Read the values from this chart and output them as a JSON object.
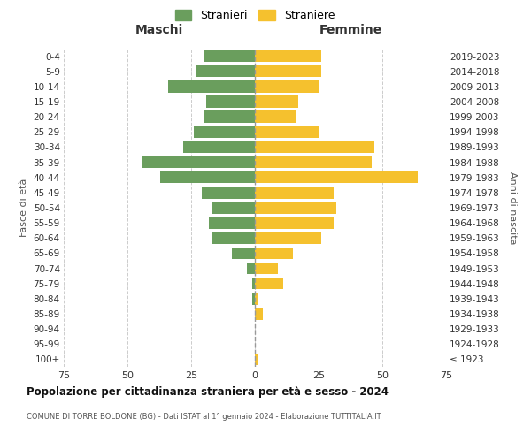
{
  "age_groups": [
    "100+",
    "95-99",
    "90-94",
    "85-89",
    "80-84",
    "75-79",
    "70-74",
    "65-69",
    "60-64",
    "55-59",
    "50-54",
    "45-49",
    "40-44",
    "35-39",
    "30-34",
    "25-29",
    "20-24",
    "15-19",
    "10-14",
    "5-9",
    "0-4"
  ],
  "birth_years": [
    "≤ 1923",
    "1924-1928",
    "1929-1933",
    "1934-1938",
    "1939-1943",
    "1944-1948",
    "1949-1953",
    "1954-1958",
    "1959-1963",
    "1964-1968",
    "1969-1973",
    "1974-1978",
    "1979-1983",
    "1984-1988",
    "1989-1993",
    "1994-1998",
    "1999-2003",
    "2004-2008",
    "2009-2013",
    "2014-2018",
    "2019-2023"
  ],
  "maschi": [
    0,
    0,
    0,
    0,
    1,
    1,
    3,
    9,
    17,
    18,
    17,
    21,
    37,
    44,
    28,
    24,
    20,
    19,
    34,
    23,
    20
  ],
  "femmine": [
    1,
    0,
    0,
    3,
    1,
    11,
    9,
    15,
    26,
    31,
    32,
    31,
    64,
    46,
    47,
    25,
    16,
    17,
    25,
    26,
    26
  ],
  "male_color": "#6a9e5d",
  "female_color": "#f5c12e",
  "center_line_color": "#999999",
  "grid_color": "#cccccc",
  "background_color": "#ffffff",
  "title": "Popolazione per cittadinanza straniera per età e sesso - 2024",
  "subtitle": "COMUNE DI TORRE BOLDONE (BG) - Dati ISTAT al 1° gennaio 2024 - Elaborazione TUTTITALIA.IT",
  "xlabel_left": "Maschi",
  "xlabel_right": "Femmine",
  "ylabel_left": "Fasce di età",
  "ylabel_right": "Anni di nascita",
  "legend_stranieri": "Stranieri",
  "legend_straniere": "Straniere",
  "xlim": 75
}
